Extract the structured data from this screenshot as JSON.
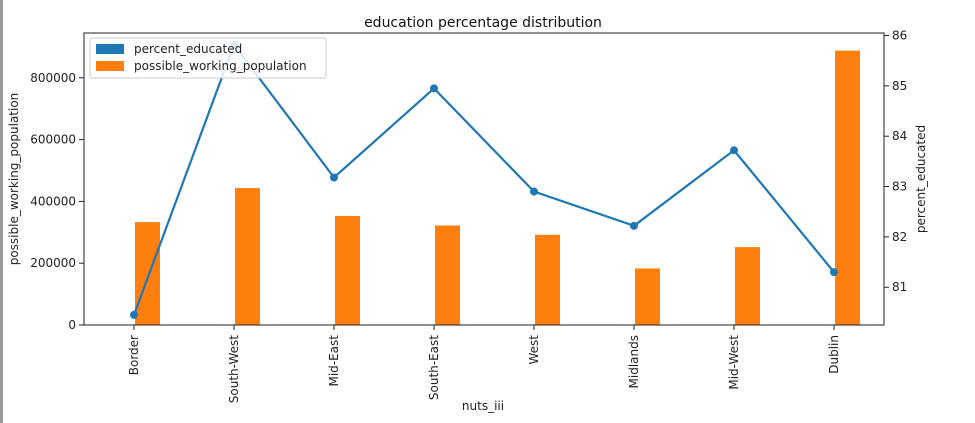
{
  "chart_data": {
    "type": "bar",
    "title": "education percentage distribution",
    "xlabel": "nuts_iii",
    "ylabel": "possible_working_population",
    "ylabel_right": "percent_educated",
    "categories": [
      "Border",
      "South-West",
      "Mid-East",
      "South-East",
      "West",
      "Midlands",
      "Mid-West",
      "Dublin"
    ],
    "ylim": [
      0,
      945000
    ],
    "yticks": [
      0,
      200000,
      400000,
      600000,
      800000
    ],
    "ylim_right": [
      80.25,
      86.05
    ],
    "yticks_right": [
      81,
      82,
      83,
      84,
      85,
      86
    ],
    "series": [
      {
        "name": "possible_working_population",
        "kind": "bar",
        "axis": "left",
        "color": "#ff7f0e",
        "values": [
          333000,
          443000,
          353000,
          322000,
          292000,
          183000,
          252000,
          888000
        ]
      },
      {
        "name": "percent_educated",
        "kind": "line",
        "axis": "right",
        "color": "#1f77b4",
        "values": [
          80.45,
          85.82,
          83.18,
          84.95,
          82.9,
          82.22,
          83.72,
          81.3
        ]
      }
    ],
    "legend": "top-left",
    "grid": false
  }
}
